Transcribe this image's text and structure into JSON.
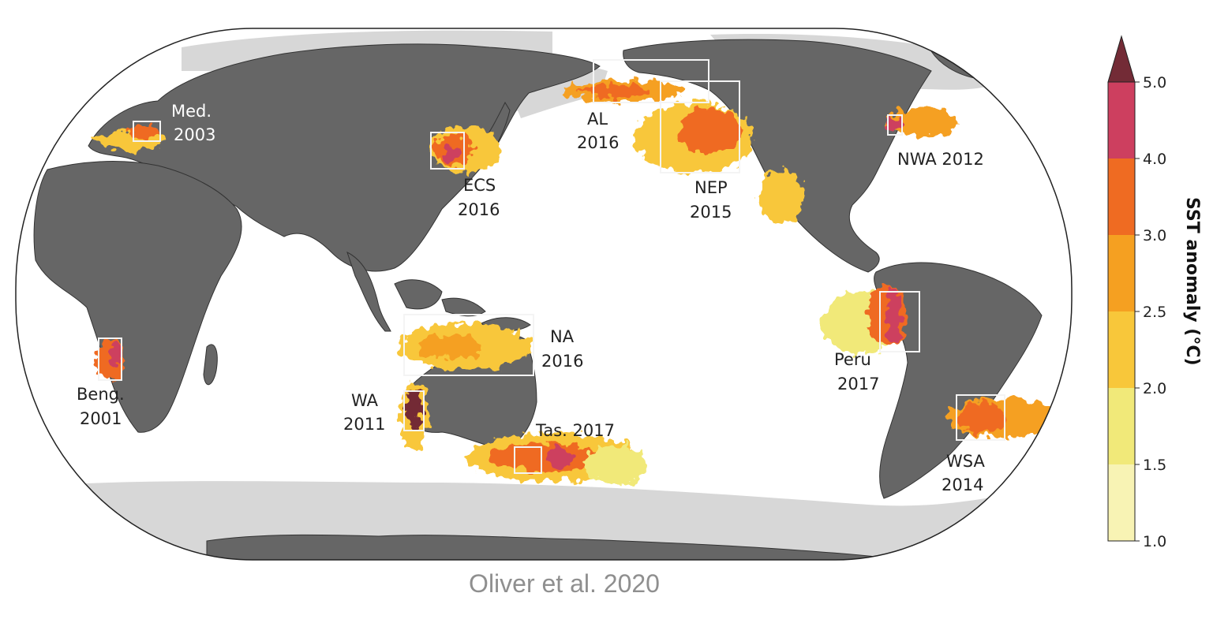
{
  "colors": {
    "ocean": "#ffffff",
    "land": "#666666",
    "sea_ice": "#d7d7d7",
    "coastline": "#333333",
    "scale": [
      "#f8f3b4",
      "#f1e979",
      "#f8c73a",
      "#f5a021",
      "#ef6b22",
      "#cd3f5f",
      "#732b36"
    ]
  },
  "colorbar": {
    "title": "SST anomaly (°C)",
    "ticks": [
      "1.0",
      "1.5",
      "2.0",
      "2.5",
      "3.0",
      "4.0",
      "5.0"
    ],
    "extend": "max"
  },
  "events": [
    {
      "name": "Med.",
      "year": "2003"
    },
    {
      "name": "ECS",
      "year": "2016"
    },
    {
      "name": "AL",
      "year": "2016"
    },
    {
      "name": "NEP",
      "year": "2015"
    },
    {
      "name": "NWA 2012",
      "year": ""
    },
    {
      "name": "NA",
      "year": "2016"
    },
    {
      "name": "Peru",
      "year": "2017"
    },
    {
      "name": "Beng.",
      "year": "2001"
    },
    {
      "name": "WA",
      "year": "2011"
    },
    {
      "name": "Tas. 2017",
      "year": ""
    },
    {
      "name": "WSA",
      "year": "2014"
    }
  ],
  "credit": "Oliver et al. 2020"
}
